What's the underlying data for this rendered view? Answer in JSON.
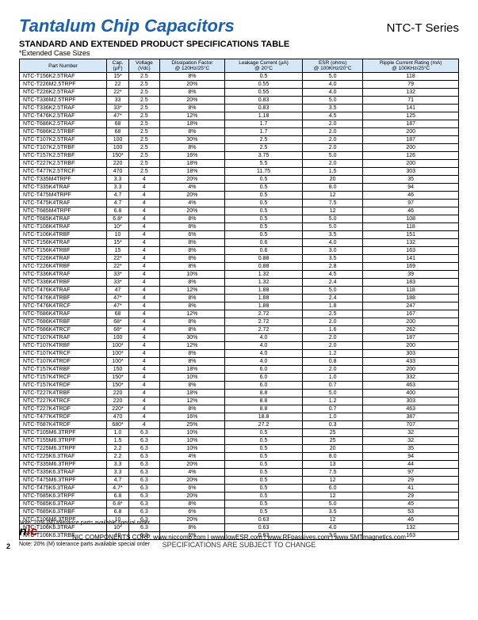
{
  "header": {
    "title": "Tantalum Chip Capacitors",
    "series": "NTC-T Series"
  },
  "section": {
    "title": "STANDARD AND EXTENDED PRODUCT SPECIFICATIONS TABLE",
    "subtitle": "*Extended Case Sizes"
  },
  "table": {
    "columns": [
      "Part Number",
      "Cap.\n(µF)",
      "Voltage\n(Vdc)",
      "Dissipation Factor\n@ 120Hz/25°C",
      "Leakage Current (µA)\n@ 20°C",
      "ESR (ohms)\n@ 100KHz/20°C",
      "Ripple Current Rating (mA)\n@ 100KHz/25°C"
    ],
    "rows": [
      [
        "NTC-T156K2.5TRAF",
        "15*",
        "2.5",
        "8%",
        "0.5",
        "5.0",
        "118"
      ],
      [
        "NTC-T226M2.5TRPF",
        "22",
        "2.5",
        "20%",
        "0.55",
        "4.0",
        "79"
      ],
      [
        "NTC-T226K2.5TRAF",
        "22*",
        "2.5",
        "8%",
        "0.55",
        "4.0",
        "132"
      ],
      [
        "NTC-T336M2.5TRPF",
        "33",
        "2.5",
        "20%",
        "0.83",
        "5.0",
        "71"
      ],
      [
        "NTC-T336K2.5TRAF",
        "33*",
        "2.5",
        "8%",
        "0.83",
        "3.5",
        "141"
      ],
      [
        "NTC-T476K2.5TRAF",
        "47*",
        "2.5",
        "12%",
        "1.18",
        "4.5",
        "125"
      ],
      [
        "NTC-T686K2.5TRAF",
        "68",
        "2.5",
        "18%",
        "1.7",
        "2.0",
        "187"
      ],
      [
        "NTC-T686K2.5TRBF",
        "68",
        "2.5",
        "8%",
        "1.7",
        "2.0",
        "200"
      ],
      [
        "NTC-T107K2.5TRAF",
        "100",
        "2.5",
        "30%",
        "2.5",
        "2.0",
        "187"
      ],
      [
        "NTC-T107K2.5TRBF",
        "100",
        "2.5",
        "8%",
        "2.5",
        "2.0",
        "200"
      ],
      [
        "NTC-T157K2.5TRBF",
        "150*",
        "2.5",
        "16%",
        "3.75",
        "5.0",
        "126"
      ],
      [
        "NTC-T227K2.5TRBF",
        "220",
        "2.5",
        "18%",
        "5.5",
        "2.0",
        "200"
      ],
      [
        "NTC-T477K2.5TRCF",
        "470",
        "2.5",
        "18%",
        "11.75",
        "1.5",
        "303"
      ],
      [
        "NTC-T335M4TRPF",
        "3.3",
        "4",
        "20%",
        "0.5",
        "20",
        "35"
      ],
      [
        "NTC-T335K4TRAF",
        "3.3",
        "4",
        "4%",
        "0.5",
        "8.0",
        "94"
      ],
      [
        "NTC-T475M4TRPF",
        "4.7",
        "4",
        "20%",
        "0.5",
        "12",
        "46"
      ],
      [
        "NTC-T475K4TRAF",
        "4.7",
        "4",
        "4%",
        "0.5",
        "7.5",
        "97"
      ],
      [
        "NTC-T685M4TRPF",
        "6.8",
        "4",
        "20%",
        "0.5",
        "12",
        "46"
      ],
      [
        "NTC-T685K4TRAF",
        "6.8*",
        "4",
        "8%",
        "0.5",
        "5.0",
        "108"
      ],
      [
        "NTC-T106K4TRAF",
        "10*",
        "4",
        "8%",
        "0.5",
        "5.0",
        "118"
      ],
      [
        "NTC-T106K4TRBF",
        "10",
        "4",
        "6%",
        "0.5",
        "3.5",
        "151"
      ],
      [
        "NTC-T156K4TRAF",
        "15*",
        "4",
        "8%",
        "0.6",
        "4.0",
        "132"
      ],
      [
        "NTC-T156K4TRBF",
        "15",
        "4",
        "8%",
        "0.6",
        "3.0",
        "163"
      ],
      [
        "NTC-T226K4TRAF",
        "22*",
        "4",
        "8%",
        "0.88",
        "3.5",
        "141"
      ],
      [
        "NTC-T226K4TRBF",
        "22*",
        "4",
        "8%",
        "0.88",
        "2.8",
        "169"
      ],
      [
        "NTC-T336K4TRAF",
        "33*",
        "4",
        "10%",
        "1.32",
        "4.5",
        "39"
      ],
      [
        "NTC-T336K4TRBF",
        "33*",
        "4",
        "8%",
        "1.32",
        "2.4",
        "183"
      ],
      [
        "NTC-T476K4TRAF",
        "47",
        "4",
        "12%",
        "1.88",
        "5.0",
        "118"
      ],
      [
        "NTC-T476K4TRBF",
        "47*",
        "4",
        "8%",
        "1.88",
        "2.4",
        "188"
      ],
      [
        "NTC-T476K4TRCF",
        "47*",
        "4",
        "8%",
        "1.88",
        "1.8",
        "247"
      ],
      [
        "NTC-T686K4TRAF",
        "68",
        "4",
        "12%",
        "2.72",
        "2.5",
        "167"
      ],
      [
        "NTC-T686K4TRBF",
        "68*",
        "4",
        "8%",
        "2.72",
        "2.0",
        "200"
      ],
      [
        "NTC-T686K4TRCF",
        "68*",
        "4",
        "8%",
        "2.72",
        "1.6",
        "262"
      ],
      [
        "NTC-T107K4TRAF",
        "100",
        "4",
        "30%",
        "4.0",
        "2.0",
        "187"
      ],
      [
        "NTC-T107K4TRBF",
        "100*",
        "4",
        "12%",
        "4.0",
        "2.0",
        "200"
      ],
      [
        "NTC-T107K4TRCF",
        "100*",
        "4",
        "8%",
        "4.0",
        "1.2",
        "303"
      ],
      [
        "NTC-T107K4TRDF",
        "100*",
        "4",
        "8%",
        "4.0",
        "0.8",
        "433"
      ],
      [
        "NTC-T157K4TRBF",
        "150",
        "4",
        "18%",
        "6.0",
        "2.0",
        "200"
      ],
      [
        "NTC-T157K4TRCF",
        "150*",
        "4",
        "10%",
        "6.0",
        "1.0",
        "332"
      ],
      [
        "NTC-T157K4TRDF",
        "150*",
        "4",
        "8%",
        "6.0",
        "0.7",
        "463"
      ],
      [
        "NTC-T227K4TRBF",
        "220",
        "4",
        "18%",
        "8.8",
        "5.0",
        "400"
      ],
      [
        "NTC-T227K4TRCF",
        "220",
        "4",
        "12%",
        "8.8",
        "1.2",
        "303"
      ],
      [
        "NTC-T227K4TRDF",
        "220*",
        "4",
        "8%",
        "8.8",
        "0.7",
        "463"
      ],
      [
        "NTC-T477K4TRDF",
        "470",
        "4",
        "16%",
        "18.8",
        "1.0",
        "387"
      ],
      [
        "NTC-T687K4TRDF",
        "680*",
        "4",
        "25%",
        "27.2",
        "0.3",
        "707"
      ],
      [
        "NTC-T105M6.3TRPF",
        "1.0",
        "6.3",
        "10%",
        "0.5",
        "25",
        "32"
      ],
      [
        "NTC-T155M6.3TRPF",
        "1.5",
        "6.3",
        "10%",
        "0.5",
        "25",
        "32"
      ],
      [
        "NTC-T225M6.3TRPF",
        "2.2",
        "6.3",
        "10%",
        "0.5",
        "20",
        "35"
      ],
      [
        "NTC-T225K6.3TRAF",
        "2.2",
        "6.3",
        "4%",
        "0.5",
        "8.0",
        "94"
      ],
      [
        "NTC-T335M6.3TRPF",
        "3.3",
        "6.3",
        "20%",
        "0.5",
        "13",
        "44"
      ],
      [
        "NTC-T335K6.3TRAF",
        "3.3",
        "6.3",
        "4%",
        "0.5",
        "7.5",
        "97"
      ],
      [
        "NTC-T475M6.3TRPF",
        "4.7",
        "6.3",
        "20%",
        "0.5",
        "12",
        "29"
      ],
      [
        "NTC-T475K6.3TRAF",
        "4.7*",
        "6.3",
        "6%",
        "0.5",
        "6.0",
        "41"
      ],
      [
        "NTC-T685K6.3TRPF",
        "6.8",
        "6.3",
        "20%",
        "0.5",
        "12",
        "29"
      ],
      [
        "NTC-T685K6.3TRAF",
        "6.8*",
        "6.3",
        "8%",
        "0.5",
        "5.0",
        "45"
      ],
      [
        "NTC-T685K6.3TRBF",
        "6.8",
        "6.3",
        "6%",
        "0.5",
        "3.5",
        "53"
      ],
      [
        "NTC-T106M6.3TRPF",
        "10",
        "6.3",
        "20%",
        "0.63",
        "12",
        "46"
      ],
      [
        "NTC-T106K6.3TRAF",
        "10*",
        "6.3",
        "8%",
        "0.63",
        "4.0",
        "132"
      ],
      [
        "NTC-T106K6.3TRBF",
        "10",
        "6.3",
        "6%",
        "0.63",
        "3.0",
        "163"
      ]
    ]
  },
  "note": "Note: 20% (M) tolerance parts available special order",
  "footer": {
    "note2": "Note: 20% (M) tolerance parts available special order",
    "corp": "NIC COMPONENTS CORP.   www.niccomp.com   |   www.lowESR.com   |   www.RFpassives.com   |   www.SMTmagnetics.com",
    "disclaimer": "SPECIFICATIONS ARE SUBJECT TO CHANGE"
  },
  "logo": {
    "n": "n",
    "ic": "ic"
  },
  "pageNumber": "2"
}
